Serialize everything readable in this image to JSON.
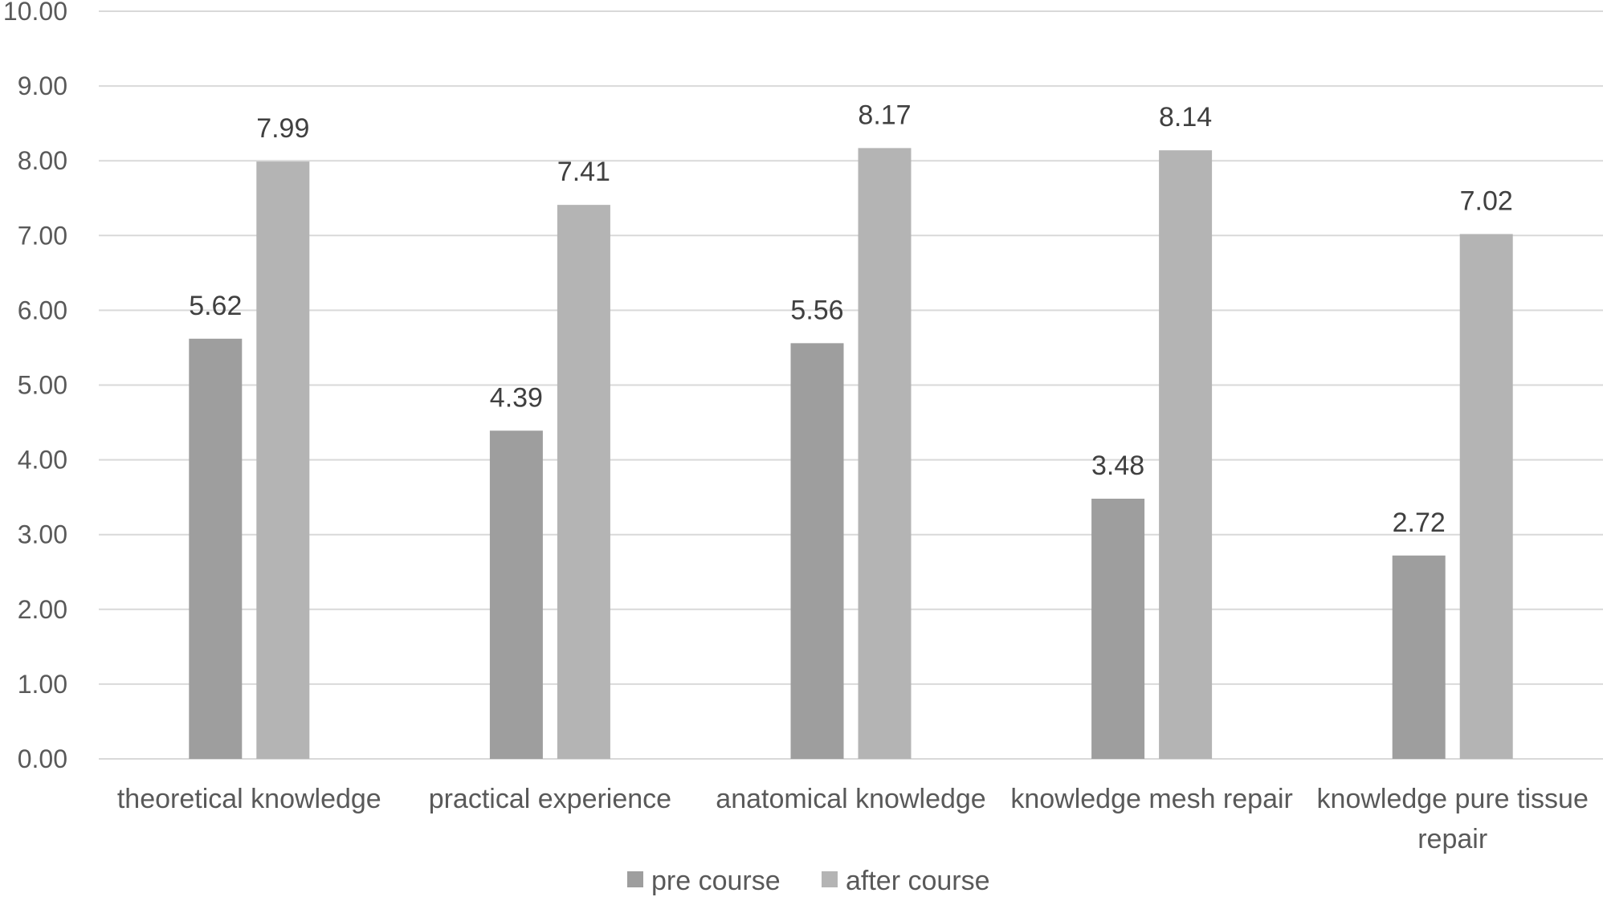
{
  "chart_data": {
    "type": "bar",
    "categories": [
      [
        "theoretical knowledge"
      ],
      [
        "practical experience"
      ],
      [
        "anatomical knowledge"
      ],
      [
        "knowledge mesh repair"
      ],
      [
        "knowledge pure tissue",
        "repair"
      ]
    ],
    "series": [
      {
        "name": "pre course",
        "values": [
          5.62,
          4.39,
          5.56,
          3.48,
          2.72
        ],
        "color": "#9e9e9e"
      },
      {
        "name": "after course",
        "values": [
          7.99,
          7.41,
          8.17,
          8.14,
          7.02
        ],
        "color": "#b4b4b4"
      }
    ],
    "ylim": [
      0,
      10
    ],
    "yticks": [
      "0.00",
      "1.00",
      "2.00",
      "3.00",
      "4.00",
      "5.00",
      "6.00",
      "7.00",
      "8.00",
      "9.00",
      "10.00"
    ],
    "grid": true,
    "gridColor": "#d9d9d9",
    "legend_position": "bottom",
    "title": "",
    "xlabel": "",
    "ylabel": ""
  }
}
